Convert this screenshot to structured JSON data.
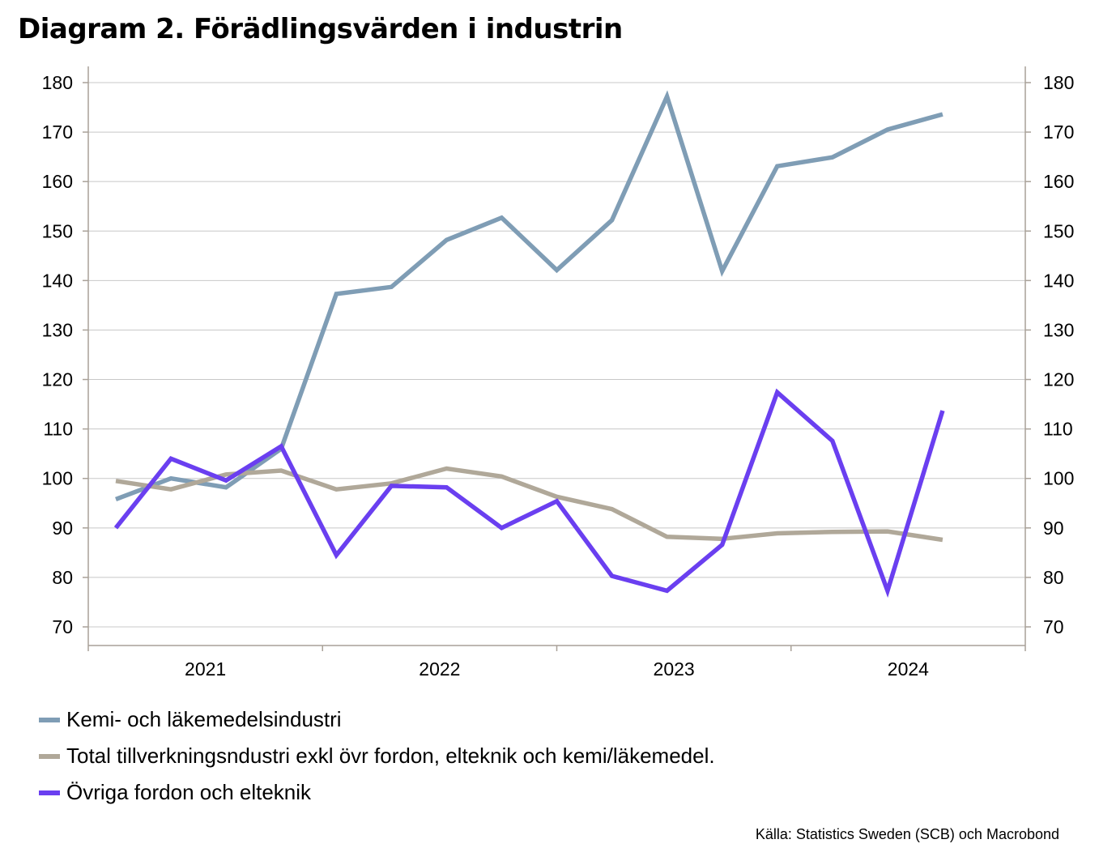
{
  "title": "Diagram 2. Förädlingsvärden i industrin",
  "source": "Källa: Statistics Sweden (SCB)  och Macrobond",
  "chart_data": {
    "type": "line",
    "title": "Diagram 2. Förädlingsvärden i industrin",
    "xlabel": "",
    "ylabel": "",
    "ylim": [
      70,
      180
    ],
    "yticks": [
      70,
      80,
      90,
      100,
      110,
      120,
      130,
      140,
      150,
      160,
      170,
      180
    ],
    "y_axis_right": true,
    "grid": true,
    "legend_position": "bottom",
    "year_labels": [
      "2021",
      "2022",
      "2023",
      "2024"
    ],
    "x": [
      "2020-12",
      "2021-03",
      "2021-06",
      "2021-09",
      "2021-12",
      "2022-03",
      "2022-06",
      "2022-09",
      "2022-12",
      "2023-03",
      "2023-06",
      "2023-09",
      "2023-12",
      "2024-03",
      "2024-06",
      "2024-09",
      "2024-12"
    ],
    "series": [
      {
        "name": "Kemi-  och läkemedelsindustri",
        "color": "#7f9db5",
        "values": [
          95.8,
          100.0,
          98.2,
          106.0,
          137.3,
          138.7,
          148.2,
          152.7,
          142.1,
          152.2,
          177.2,
          141.9,
          163.1,
          164.9,
          170.5,
          173.6,
          null
        ]
      },
      {
        "name": "Total tillverkningsndustri exkl övr fordon, elteknik och kemi/läkemedel.",
        "color": "#b0a899",
        "values": [
          99.5,
          97.8,
          100.8,
          101.6,
          97.8,
          99.0,
          102.0,
          100.4,
          96.3,
          93.8,
          88.2,
          87.8,
          88.9,
          89.2,
          89.3,
          87.6,
          null
        ]
      },
      {
        "name": "Övriga fordon och elteknik",
        "color": "#6a3ff0",
        "values": [
          90.0,
          104.0,
          99.6,
          106.5,
          84.5,
          98.5,
          98.2,
          90.0,
          95.4,
          80.3,
          77.3,
          86.6,
          117.4,
          107.6,
          77.3,
          113.7,
          null
        ]
      }
    ]
  }
}
